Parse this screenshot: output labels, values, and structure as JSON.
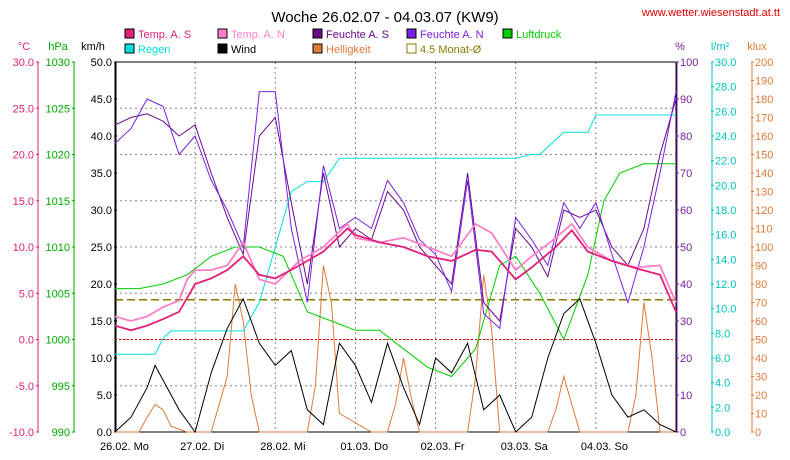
{
  "chart_data": {
    "type": "line",
    "title": "Woche 26.02.07 - 04.03.07 (KW9)",
    "source": "www.wetter.wiesenstadt.at.tt",
    "legend": [
      {
        "label": "Temp. A. S",
        "color": "#e0207a"
      },
      {
        "label": "Temp. A. N",
        "color": "#ff80c8"
      },
      {
        "label": "Feuchte A. S",
        "color": "#6a0b8a"
      },
      {
        "label": "Feuchte A. N",
        "color": "#7a20e0"
      },
      {
        "label": "Luftdruck",
        "color": "#00cc00"
      },
      {
        "label": "Regen",
        "color": "#00e0e0"
      },
      {
        "label": "Wind",
        "color": "#000000"
      },
      {
        "label": "Helligkeit",
        "color": "#e07a3a"
      },
      {
        "label": "4.5 Monat-Ø",
        "color": "#8a7a00"
      }
    ],
    "x_ticks": [
      "26.02. Mo",
      "27.02. Di",
      "28.02. Mi",
      "01.03. Do",
      "02.03. Fr",
      "03.03. Sa",
      "04.03. So"
    ],
    "axes": [
      {
        "unit": "°C",
        "color": "#e0207a",
        "ticks": [
          "30.0",
          "25.0",
          "20.0",
          "15.0",
          "10.0",
          "5.0",
          "0.0",
          "-5.0",
          "-10.0"
        ]
      },
      {
        "unit": "hPa",
        "color": "#00aa00",
        "ticks": [
          "1030",
          "1025",
          "1020",
          "1015",
          "1010",
          "1005",
          "1000",
          "995",
          "990"
        ]
      },
      {
        "unit": "km/h",
        "color": "#000000",
        "ticks": [
          "50.0",
          "45.0",
          "40.0",
          "35.0",
          "30.0",
          "25.0",
          "20.0",
          "15.0",
          "10.0",
          "5.0",
          "0.0"
        ]
      },
      {
        "unit": "%",
        "color": "#7a20a0",
        "ticks": [
          "100",
          "90",
          "80",
          "70",
          "60",
          "50",
          "40",
          "30",
          "20",
          "10",
          "0"
        ]
      },
      {
        "unit": "l/m²",
        "color": "#00c0c0",
        "ticks": [
          "30.0",
          "28.0",
          "26.0",
          "24.0",
          "22.0",
          "20.0",
          "18.0",
          "16.0",
          "14.0",
          "12.0",
          "10.0",
          "8.0",
          "6.0",
          "4.0",
          "2.0",
          "0.0"
        ]
      },
      {
        "unit": "klux",
        "color": "#e07a3a",
        "ticks": [
          "200",
          "190",
          "180",
          "170",
          "160",
          "150",
          "140",
          "130",
          "120",
          "110",
          "100",
          "90",
          "80",
          "70",
          "60",
          "50",
          "40",
          "30",
          "20",
          "10",
          "0"
        ]
      }
    ],
    "xlim_days": [
      0,
      7
    ],
    "ylim_temp": [
      -10,
      30
    ],
    "reference_lines": {
      "temp_zero": 0.0,
      "monthly_avg_temp": 4.3
    },
    "grid": true,
    "series": [
      {
        "name": "Temp. A. S",
        "axis": "°C",
        "x": [
          0,
          0.2,
          0.4,
          0.6,
          0.8,
          0.9,
          1.0,
          1.2,
          1.4,
          1.6,
          1.8,
          2.0,
          2.3,
          2.6,
          2.9,
          3.0,
          3.3,
          3.6,
          3.9,
          4.2,
          4.5,
          4.7,
          5.0,
          5.2,
          5.5,
          5.7,
          5.9,
          6.2,
          6.5,
          6.8,
          7.0
        ],
        "values": [
          1.5,
          1.0,
          1.5,
          2.2,
          3.0,
          4.5,
          6.0,
          6.6,
          7.5,
          9.0,
          7.0,
          6.6,
          8.0,
          9.5,
          12.0,
          11.3,
          10.5,
          10.0,
          9.0,
          8.5,
          9.7,
          9.5,
          6.5,
          7.8,
          10.0,
          11.8,
          9.5,
          8.5,
          7.7,
          7.0,
          3.0
        ]
      },
      {
        "name": "Temp. A. N",
        "axis": "°C",
        "x": [
          0,
          0.2,
          0.4,
          0.6,
          0.8,
          0.9,
          1.0,
          1.2,
          1.4,
          1.6,
          1.8,
          2.0,
          2.3,
          2.6,
          2.9,
          3.0,
          3.3,
          3.6,
          3.9,
          4.2,
          4.5,
          4.7,
          5.0,
          5.2,
          5.5,
          5.7,
          5.9,
          6.2,
          6.5,
          6.8,
          7.0
        ],
        "values": [
          2.5,
          2.0,
          2.5,
          3.5,
          4.2,
          6.5,
          7.5,
          7.5,
          8.0,
          10.5,
          6.5,
          6.0,
          8.5,
          10.0,
          12.5,
          11.0,
          10.5,
          11.0,
          10.0,
          9.0,
          12.5,
          11.5,
          7.5,
          9.0,
          11.0,
          12.5,
          10.0,
          8.5,
          7.8,
          8.0,
          4.0
        ]
      },
      {
        "name": "Feuchte A. S",
        "axis": "%",
        "x": [
          0,
          0.2,
          0.4,
          0.6,
          0.8,
          1.0,
          1.2,
          1.4,
          1.6,
          1.8,
          2.0,
          2.2,
          2.4,
          2.6,
          2.8,
          3.0,
          3.2,
          3.4,
          3.6,
          3.8,
          4.0,
          4.2,
          4.4,
          4.6,
          4.8,
          5.0,
          5.2,
          5.4,
          5.6,
          5.8,
          6.0,
          6.2,
          6.4,
          6.6,
          6.8,
          7.0
        ],
        "values": [
          83,
          85,
          86,
          84,
          80,
          83,
          70,
          58,
          48,
          80,
          85,
          62,
          40,
          70,
          50,
          55,
          52,
          65,
          60,
          50,
          45,
          40,
          70,
          35,
          30,
          55,
          50,
          42,
          60,
          58,
          60,
          50,
          45,
          55,
          75,
          90
        ]
      },
      {
        "name": "Feuchte A. N",
        "axis": "%",
        "x": [
          0,
          0.2,
          0.4,
          0.6,
          0.8,
          1.0,
          1.2,
          1.4,
          1.6,
          1.8,
          2.0,
          2.2,
          2.4,
          2.6,
          2.8,
          3.0,
          3.2,
          3.4,
          3.6,
          3.8,
          4.0,
          4.2,
          4.4,
          4.6,
          4.8,
          5.0,
          5.2,
          5.4,
          5.6,
          5.8,
          6.0,
          6.2,
          6.4,
          6.6,
          6.8,
          7.0
        ],
        "values": [
          78,
          82,
          90,
          88,
          75,
          80,
          68,
          60,
          50,
          92,
          92,
          55,
          35,
          72,
          55,
          58,
          55,
          68,
          62,
          52,
          48,
          38,
          68,
          32,
          28,
          58,
          52,
          45,
          62,
          55,
          62,
          48,
          35,
          50,
          70,
          92
        ]
      },
      {
        "name": "Luftdruck",
        "axis": "hPa",
        "x": [
          0,
          0.3,
          0.6,
          0.9,
          1.2,
          1.5,
          1.8,
          2.1,
          2.4,
          2.7,
          3.0,
          3.3,
          3.6,
          3.9,
          4.2,
          4.5,
          4.8,
          5.0,
          5.3,
          5.6,
          5.9,
          6.1,
          6.3,
          6.6,
          6.9,
          7.0
        ],
        "values": [
          1005.5,
          1005.5,
          1006,
          1007,
          1009,
          1010,
          1010,
          1009,
          1003,
          1002,
          1001,
          1001,
          999,
          997,
          996,
          999,
          1008,
          1009,
          1005,
          1000,
          1007,
          1015,
          1018,
          1019,
          1019,
          1019
        ]
      },
      {
        "name": "Regen",
        "axis": "l/m²",
        "x": [
          0,
          0.5,
          0.6,
          0.7,
          1.0,
          1.4,
          1.6,
          1.8,
          2.0,
          2.2,
          2.4,
          2.45,
          2.6,
          2.8,
          3.0,
          3.3,
          3.6,
          4.0,
          4.5,
          5.0,
          5.2,
          5.3,
          5.6,
          5.9,
          6.0,
          6.2,
          6.5,
          7.0
        ],
        "values": [
          6.3,
          6.3,
          7.6,
          8.2,
          8.2,
          8.2,
          8.2,
          10.5,
          15.0,
          19.5,
          20.3,
          20.3,
          20.3,
          22.2,
          22.2,
          22.2,
          22.2,
          22.2,
          22.2,
          22.2,
          22.5,
          22.5,
          24.3,
          24.3,
          25.7,
          25.7,
          25.7,
          25.7
        ]
      },
      {
        "name": "Wind",
        "axis": "km/h",
        "x": [
          0,
          0.2,
          0.4,
          0.5,
          0.6,
          0.8,
          1.0,
          1.2,
          1.4,
          1.6,
          1.8,
          2.0,
          2.2,
          2.4,
          2.6,
          2.8,
          3.0,
          3.2,
          3.4,
          3.6,
          3.8,
          4.0,
          4.2,
          4.4,
          4.6,
          4.8,
          5.0,
          5.2,
          5.4,
          5.6,
          5.8,
          6.0,
          6.2,
          6.4,
          6.6,
          6.8,
          7.0
        ],
        "values": [
          0,
          2,
          6,
          9,
          7,
          3,
          0,
          8,
          14,
          18,
          12,
          9,
          11,
          3,
          1,
          12,
          9,
          4,
          12,
          6,
          1,
          10,
          8,
          12,
          3,
          5,
          0,
          2,
          10,
          16,
          18,
          12,
          5,
          2,
          3,
          1,
          0
        ]
      },
      {
        "name": "Helligkeit",
        "axis": "klux",
        "x": [
          0,
          0.3,
          0.4,
          0.5,
          0.6,
          0.7,
          0.9,
          1.2,
          1.4,
          1.5,
          1.6,
          1.7,
          1.8,
          1.9,
          2.2,
          2.4,
          2.5,
          2.6,
          2.7,
          2.8,
          3.2,
          3.4,
          3.5,
          3.6,
          3.7,
          3.8,
          4.2,
          4.4,
          4.5,
          4.6,
          4.7,
          4.8,
          5.2,
          5.4,
          5.5,
          5.6,
          5.7,
          5.8,
          6.2,
          6.4,
          6.5,
          6.6,
          6.7,
          6.8,
          7.0
        ],
        "values": [
          0,
          0,
          8,
          15,
          12,
          3,
          0,
          0,
          30,
          80,
          60,
          20,
          0,
          0,
          0,
          0,
          25,
          90,
          70,
          10,
          0,
          0,
          15,
          40,
          18,
          0,
          0,
          0,
          30,
          85,
          55,
          0,
          0,
          0,
          12,
          30,
          15,
          0,
          0,
          0,
          20,
          70,
          40,
          0,
          0
        ]
      }
    ]
  }
}
